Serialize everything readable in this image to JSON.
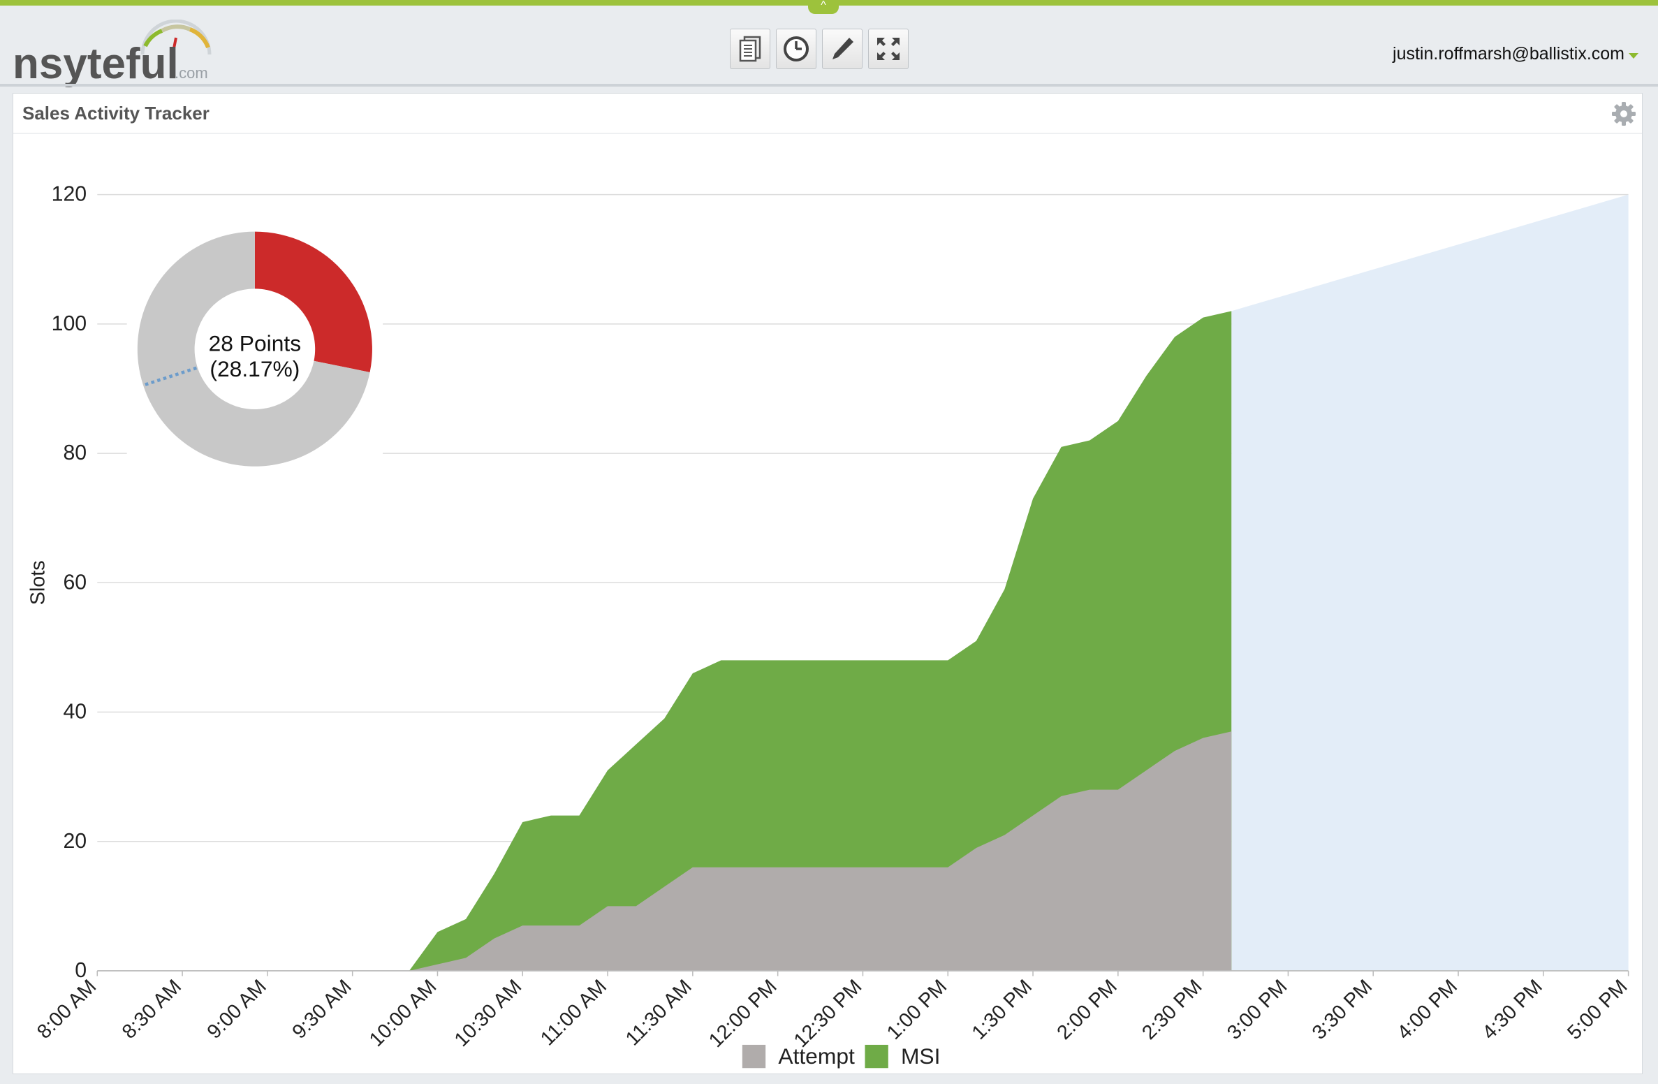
{
  "app": {
    "logo_text": "nsyteful",
    "logo_suffix": ".com"
  },
  "toolbar": {
    "buttons": [
      {
        "name": "report-button",
        "icon": "document-icon"
      },
      {
        "name": "history-button",
        "icon": "clock-icon"
      },
      {
        "name": "edit-button",
        "icon": "pencil-icon"
      },
      {
        "name": "fullscreen-button",
        "icon": "expand-icon"
      }
    ]
  },
  "user": {
    "email": "justin.roffmarsh@ballistix.com"
  },
  "panel": {
    "title": "Sales Activity Tracker",
    "settings_icon": "gear-icon"
  },
  "colors": {
    "accent": "#9dc23c",
    "attempt": "#b0acab",
    "msi": "#6fab47",
    "target": "#e3edf8",
    "donut_red": "#cc2a2a",
    "donut_gray": "#c8c8c8",
    "donut_marker": "#6c9ccb"
  },
  "chart_data": {
    "type": "area",
    "stacked": true,
    "ylabel": "Slots",
    "xlabel": "",
    "ylim": [
      0,
      120
    ],
    "yticks": [
      0,
      20,
      40,
      60,
      80,
      100,
      120
    ],
    "grid": true,
    "legend_position": "bottom",
    "xticks": [
      "8:00 AM",
      "8:30 AM",
      "9:00 AM",
      "9:30 AM",
      "10:00 AM",
      "10:30 AM",
      "11:00 AM",
      "11:30 AM",
      "12:00 PM",
      "12:30 PM",
      "1:00 PM",
      "1:30 PM",
      "2:00 PM",
      "2:30 PM",
      "3:00 PM",
      "3:30 PM",
      "4:00 PM",
      "4:30 PM",
      "5:00 PM"
    ],
    "x": [
      "9:50 AM",
      "10:00 AM",
      "10:10 AM",
      "10:20 AM",
      "10:30 AM",
      "10:40 AM",
      "10:50 AM",
      "11:00 AM",
      "11:10 AM",
      "11:20 AM",
      "11:30 AM",
      "11:40 AM",
      "11:50 AM",
      "12:00 PM",
      "12:10 PM",
      "12:20 PM",
      "12:30 PM",
      "12:40 PM",
      "12:50 PM",
      "1:00 PM",
      "1:10 PM",
      "1:20 PM",
      "1:30 PM",
      "1:40 PM",
      "1:50 PM",
      "2:00 PM",
      "2:10 PM",
      "2:20 PM",
      "2:30 PM",
      "2:40 PM"
    ],
    "series": [
      {
        "name": "Attempt",
        "values": [
          0,
          1,
          2,
          5,
          7,
          7,
          7,
          10,
          10,
          13,
          16,
          16,
          16,
          16,
          16,
          16,
          16,
          16,
          16,
          16,
          19,
          21,
          24,
          27,
          28,
          28,
          31,
          34,
          36,
          37
        ]
      },
      {
        "name": "MSI",
        "values": [
          0,
          5,
          6,
          10,
          16,
          17,
          17,
          21,
          25,
          26,
          30,
          32,
          32,
          32,
          32,
          32,
          32,
          32,
          32,
          32,
          32,
          38,
          49,
          54,
          54,
          57,
          61,
          64,
          65,
          65
        ]
      }
    ],
    "target": {
      "x": [
        "2:40 PM",
        "5:00 PM"
      ],
      "y": [
        102,
        120
      ]
    },
    "donut": {
      "label": "28 Points",
      "percent_label": "(28.17%)",
      "value_fraction": 0.2817,
      "marker_position_fraction": 0.7
    }
  }
}
